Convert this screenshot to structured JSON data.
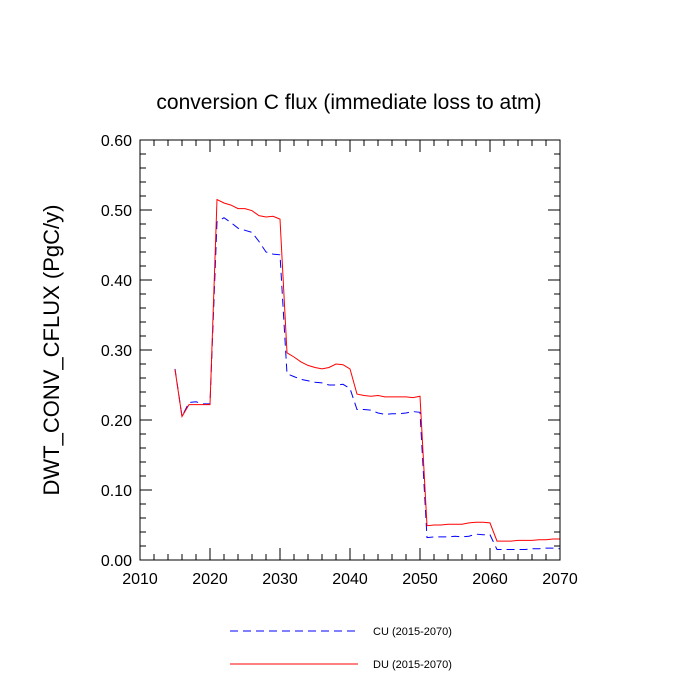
{
  "chart_data": {
    "type": "line",
    "title": "conversion C flux (immediate loss to atm)",
    "xlabel": "",
    "ylabel": "DWT_CONV_CFLUX  (PgC/y)",
    "xlim": [
      2010,
      2070
    ],
    "ylim": [
      0.0,
      0.6
    ],
    "x_ticks": [
      2010,
      2020,
      2030,
      2040,
      2050,
      2060,
      2070
    ],
    "x_tick_labels": [
      "2010",
      "2020",
      "2030",
      "2040",
      "2050",
      "2060",
      "2070"
    ],
    "y_ticks": [
      0.0,
      0.1,
      0.2,
      0.3,
      0.4,
      0.5,
      0.6
    ],
    "y_tick_labels": [
      "0.00",
      "0.10",
      "0.20",
      "0.30",
      "0.40",
      "0.50",
      "0.60"
    ],
    "grid": false,
    "legend_position": "bottom",
    "series": [
      {
        "name": "CU (2015-2070)",
        "color": "#0000ff",
        "style": "dashed",
        "x": [
          2015,
          2016,
          2017,
          2018,
          2019,
          2020,
          2021,
          2022,
          2023,
          2024,
          2025,
          2026,
          2027,
          2028,
          2029,
          2030,
          2031,
          2032,
          2033,
          2034,
          2035,
          2036,
          2037,
          2038,
          2039,
          2040,
          2041,
          2042,
          2043,
          2044,
          2045,
          2046,
          2047,
          2048,
          2049,
          2050,
          2051,
          2052,
          2053,
          2054,
          2055,
          2056,
          2057,
          2058,
          2059,
          2060,
          2061,
          2062,
          2063,
          2064,
          2065,
          2066,
          2067,
          2068,
          2069,
          2070
        ],
        "values": [
          0.273,
          0.205,
          0.225,
          0.226,
          0.223,
          0.223,
          0.483,
          0.489,
          0.482,
          0.474,
          0.471,
          0.468,
          0.455,
          0.44,
          0.437,
          0.436,
          0.266,
          0.262,
          0.258,
          0.256,
          0.254,
          0.253,
          0.25,
          0.25,
          0.251,
          0.245,
          0.215,
          0.215,
          0.214,
          0.21,
          0.208,
          0.209,
          0.209,
          0.21,
          0.212,
          0.211,
          0.032,
          0.033,
          0.033,
          0.033,
          0.034,
          0.033,
          0.034,
          0.037,
          0.036,
          0.036,
          0.015,
          0.015,
          0.015,
          0.015,
          0.015,
          0.016,
          0.016,
          0.017,
          0.017,
          0.016
        ]
      },
      {
        "name": "DU (2015-2070)",
        "color": "#ff0000",
        "style": "solid",
        "x": [
          2015,
          2016,
          2017,
          2018,
          2019,
          2020,
          2021,
          2022,
          2023,
          2024,
          2025,
          2026,
          2027,
          2028,
          2029,
          2030,
          2031,
          2032,
          2033,
          2034,
          2035,
          2036,
          2037,
          2038,
          2039,
          2040,
          2041,
          2042,
          2043,
          2044,
          2045,
          2046,
          2047,
          2048,
          2049,
          2050,
          2051,
          2052,
          2053,
          2054,
          2055,
          2056,
          2057,
          2058,
          2059,
          2060,
          2061,
          2062,
          2063,
          2064,
          2065,
          2066,
          2067,
          2068,
          2069,
          2070
        ],
        "values": [
          0.272,
          0.205,
          0.222,
          0.222,
          0.222,
          0.222,
          0.515,
          0.51,
          0.507,
          0.502,
          0.502,
          0.499,
          0.492,
          0.49,
          0.491,
          0.487,
          0.296,
          0.29,
          0.283,
          0.278,
          0.275,
          0.273,
          0.275,
          0.28,
          0.279,
          0.273,
          0.237,
          0.235,
          0.234,
          0.235,
          0.233,
          0.233,
          0.233,
          0.233,
          0.232,
          0.234,
          0.049,
          0.05,
          0.05,
          0.051,
          0.051,
          0.051,
          0.053,
          0.054,
          0.054,
          0.053,
          0.027,
          0.027,
          0.027,
          0.028,
          0.028,
          0.028,
          0.029,
          0.029,
          0.03,
          0.03
        ]
      }
    ]
  }
}
